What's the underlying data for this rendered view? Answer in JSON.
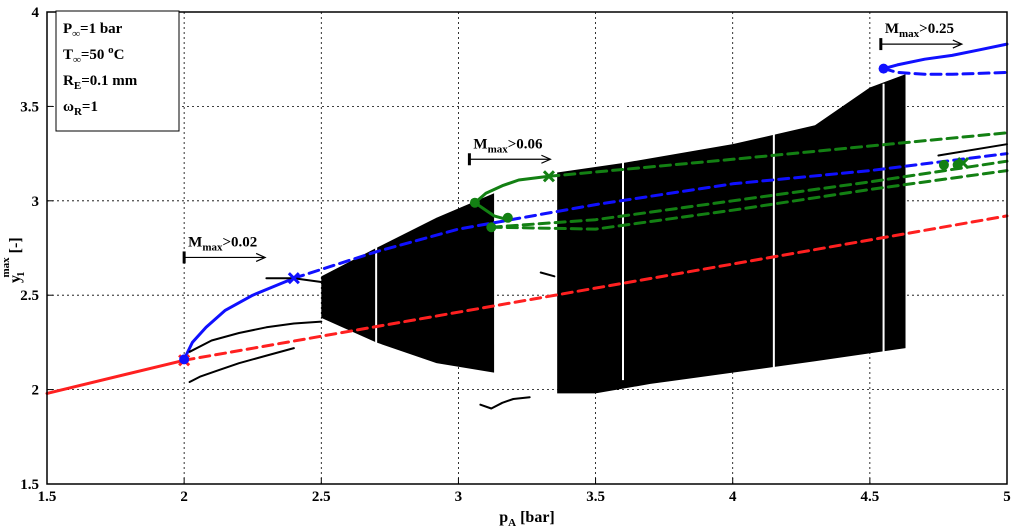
{
  "chart_data": {
    "type": "line",
    "title": "",
    "xlabel": "p_A [bar]",
    "xlabel_main": "p",
    "xlabel_sub": "A",
    "xlabel_unit": " [bar]",
    "ylabel": "y_1^max [-]",
    "ylabel_main": "y",
    "ylabel_sub": "1",
    "ylabel_sup": "max",
    "ylabel_unit": " [-]",
    "xlim": [
      1.5,
      5
    ],
    "ylim": [
      1.5,
      4
    ],
    "xticks": [
      "1.5",
      "2",
      "2.5",
      "3",
      "3.5",
      "4",
      "4.5",
      "5"
    ],
    "yticks": [
      "1.5",
      "2",
      "2.5",
      "3",
      "3.5",
      "4"
    ],
    "grid": true,
    "info_box": {
      "line1_main": "P",
      "line1_sub": "∞",
      "line1_rest": "=1 bar",
      "line2_main": "T",
      "line2_sub": "∞",
      "line2_rest": "=50 ",
      "line2_sup": "o",
      "line2_unit": "C",
      "line3_main": "R",
      "line3_sub": "E",
      "line3_rest": "=0.1 mm",
      "line4_main": "ω",
      "line4_sub": "R",
      "line4_rest": "=1"
    },
    "annotations": [
      {
        "main": "M",
        "sub": "max",
        "rest": ">0.02",
        "x": 2.0,
        "y": 2.7
      },
      {
        "main": "M",
        "sub": "max",
        "rest": ">0.06",
        "x": 3.04,
        "y": 3.22
      },
      {
        "main": "M",
        "sub": "max",
        "rest": ">0.25",
        "x": 4.54,
        "y": 3.83
      }
    ],
    "colors": {
      "red": "#ff2020",
      "blue": "#1010ff",
      "green": "#138013",
      "black": "#000000"
    },
    "series": [
      {
        "color": "red",
        "style": "solid",
        "points": [
          [
            1.5,
            1.98
          ],
          [
            2.0,
            2.155
          ]
        ]
      },
      {
        "color": "red",
        "style": "dashed",
        "points": [
          [
            2.0,
            2.155
          ],
          [
            5.0,
            2.92
          ]
        ]
      },
      {
        "color": "blue",
        "style": "solid",
        "points": [
          [
            2.0,
            2.16
          ],
          [
            2.03,
            2.25
          ],
          [
            2.08,
            2.33
          ],
          [
            2.15,
            2.42
          ],
          [
            2.25,
            2.5
          ],
          [
            2.35,
            2.56
          ],
          [
            2.4,
            2.59
          ]
        ]
      },
      {
        "color": "blue",
        "style": "dashed",
        "points": [
          [
            2.4,
            2.59
          ],
          [
            2.7,
            2.73
          ],
          [
            3.0,
            2.85
          ],
          [
            3.5,
            2.98
          ],
          [
            4.0,
            3.09
          ],
          [
            4.5,
            3.16
          ],
          [
            5.0,
            3.25
          ]
        ]
      },
      {
        "color": "blue",
        "style": "solid",
        "points": [
          [
            4.55,
            3.7
          ],
          [
            4.6,
            3.72
          ],
          [
            4.7,
            3.75
          ],
          [
            4.8,
            3.77
          ],
          [
            4.9,
            3.8
          ],
          [
            5.0,
            3.83
          ]
        ]
      },
      {
        "color": "blue",
        "style": "dashed",
        "points": [
          [
            4.55,
            3.7
          ],
          [
            4.6,
            3.68
          ],
          [
            4.7,
            3.67
          ],
          [
            4.8,
            3.67
          ],
          [
            5.0,
            3.68
          ]
        ]
      },
      {
        "color": "green",
        "style": "solid",
        "points": [
          [
            3.06,
            2.99
          ],
          [
            3.1,
            3.04
          ],
          [
            3.16,
            3.08
          ],
          [
            3.22,
            3.11
          ],
          [
            3.33,
            3.13
          ]
        ]
      },
      {
        "color": "green",
        "style": "solid",
        "points": [
          [
            3.06,
            2.99
          ],
          [
            3.09,
            2.96
          ],
          [
            3.13,
            2.92
          ],
          [
            3.18,
            2.9
          ]
        ]
      },
      {
        "color": "green",
        "style": "dashed",
        "points": [
          [
            3.33,
            3.13
          ],
          [
            4.0,
            3.22
          ],
          [
            4.5,
            3.29
          ],
          [
            5.0,
            3.36
          ]
        ]
      },
      {
        "color": "green",
        "style": "dashed",
        "points": [
          [
            3.12,
            2.86
          ],
          [
            3.5,
            2.9
          ],
          [
            4.0,
            3.0
          ],
          [
            4.5,
            3.1
          ],
          [
            5.0,
            3.21
          ]
        ]
      },
      {
        "color": "green",
        "style": "dashed",
        "points": [
          [
            3.12,
            2.86
          ],
          [
            3.5,
            2.85
          ],
          [
            4.0,
            2.95
          ],
          [
            4.5,
            3.06
          ],
          [
            5.0,
            3.16
          ]
        ]
      },
      {
        "color": "black",
        "style": "solid",
        "points": [
          [
            2.02,
            2.2
          ],
          [
            2.1,
            2.26
          ],
          [
            2.2,
            2.3
          ],
          [
            2.3,
            2.33
          ],
          [
            2.4,
            2.35
          ],
          [
            2.5,
            2.36
          ]
        ]
      },
      {
        "color": "black",
        "style": "solid",
        "points": [
          [
            2.02,
            2.04
          ],
          [
            2.06,
            2.07
          ],
          [
            2.12,
            2.1
          ],
          [
            2.2,
            2.14
          ],
          [
            2.3,
            2.18
          ],
          [
            2.4,
            2.22
          ]
        ]
      },
      {
        "color": "black",
        "style": "solid",
        "points": [
          [
            2.3,
            2.59
          ],
          [
            2.4,
            2.59
          ],
          [
            2.5,
            2.57
          ]
        ]
      },
      {
        "color": "black",
        "style": "solid",
        "points": [
          [
            3.08,
            1.92
          ],
          [
            3.12,
            1.9
          ],
          [
            3.16,
            1.93
          ],
          [
            3.2,
            1.95
          ],
          [
            3.26,
            1.96
          ]
        ]
      },
      {
        "color": "black",
        "style": "solid",
        "points": [
          [
            3.3,
            2.62
          ],
          [
            3.35,
            2.6
          ]
        ]
      },
      {
        "color": "black",
        "style": "solid",
        "points": [
          [
            3.04,
            2.56
          ],
          [
            3.12,
            2.52
          ]
        ]
      },
      {
        "color": "black",
        "style": "solid",
        "points": [
          [
            4.75,
            3.24
          ],
          [
            5.0,
            3.3
          ]
        ]
      }
    ],
    "markers": [
      {
        "x": 2.0,
        "y": 2.155,
        "color": "red",
        "shape": "x"
      },
      {
        "x": 2.0,
        "y": 2.16,
        "color": "blue",
        "shape": "dot"
      },
      {
        "x": 2.4,
        "y": 2.59,
        "color": "blue",
        "shape": "x"
      },
      {
        "x": 4.55,
        "y": 3.7,
        "color": "blue",
        "shape": "dot"
      },
      {
        "x": 3.06,
        "y": 2.99,
        "color": "green",
        "shape": "dot"
      },
      {
        "x": 3.12,
        "y": 2.86,
        "color": "green",
        "shape": "dot"
      },
      {
        "x": 3.18,
        "y": 2.91,
        "color": "green",
        "shape": "dot"
      },
      {
        "x": 3.33,
        "y": 3.13,
        "color": "green",
        "shape": "x"
      },
      {
        "x": 4.77,
        "y": 3.19,
        "color": "green",
        "shape": "dot"
      },
      {
        "x": 4.82,
        "y": 3.19,
        "color": "green",
        "shape": "dot"
      },
      {
        "x": 4.84,
        "y": 3.2,
        "color": "green",
        "shape": "x"
      }
    ],
    "chaotic_bands": [
      {
        "upper": [
          [
            2.5,
            2.6
          ],
          [
            2.7,
            2.75
          ],
          [
            2.92,
            2.91
          ],
          [
            3.13,
            3.04
          ]
        ],
        "lower": [
          [
            2.5,
            2.38
          ],
          [
            2.7,
            2.25
          ],
          [
            2.92,
            2.14
          ],
          [
            3.13,
            2.09
          ]
        ]
      },
      {
        "upper": [
          [
            3.36,
            3.15
          ],
          [
            3.6,
            3.2
          ],
          [
            4.0,
            3.3
          ],
          [
            4.3,
            3.4
          ],
          [
            4.5,
            3.6
          ],
          [
            4.63,
            3.67
          ]
        ],
        "lower": [
          [
            3.36,
            2.3
          ],
          [
            3.36,
            1.98
          ],
          [
            3.5,
            1.98
          ],
          [
            3.7,
            2.03
          ],
          [
            4.0,
            2.09
          ],
          [
            4.3,
            2.15
          ],
          [
            4.63,
            2.22
          ]
        ]
      }
    ],
    "band_gaps": [
      2.7,
      3.6,
      4.15,
      4.55
    ]
  }
}
